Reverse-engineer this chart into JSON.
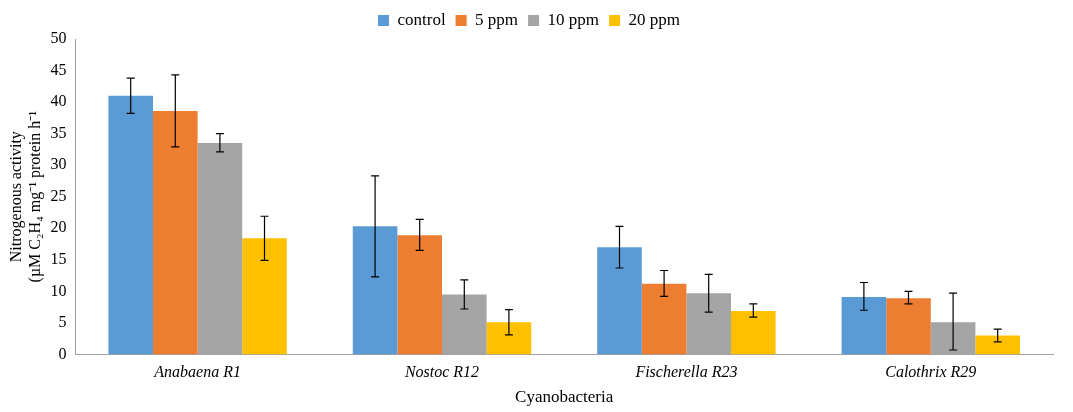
{
  "chart_data": {
    "type": "bar",
    "xlabel": "Cyanobacteria",
    "ylabel": "Nitrogenous activity\n(µM C₂H₄ mg⁻¹ protein h⁻¹",
    "categories": [
      "Anabaena R1",
      "Nostoc R12",
      "Fischerella R23",
      "Calothrix R29"
    ],
    "series": [
      {
        "name": "control",
        "color": "#5b9bd5",
        "values": [
          41.0,
          20.3,
          17.0,
          9.1
        ],
        "errors": [
          [
            38.2,
            43.8
          ],
          [
            12.3,
            28.3
          ],
          [
            13.7,
            20.3
          ],
          [
            7.0,
            11.4
          ]
        ]
      },
      {
        "name": "5 ppm",
        "color": "#ed7d31",
        "values": [
          38.6,
          18.9,
          11.2,
          8.9
        ],
        "errors": [
          [
            32.9,
            44.3
          ],
          [
            16.5,
            21.4
          ],
          [
            9.2,
            13.3
          ],
          [
            8.0,
            10.0
          ]
        ]
      },
      {
        "name": "10 ppm",
        "color": "#a5a5a5",
        "values": [
          33.5,
          9.5,
          9.7,
          5.1
        ],
        "errors": [
          [
            32.1,
            35.0
          ],
          [
            7.2,
            11.8
          ],
          [
            6.7,
            12.7
          ],
          [
            0.7,
            9.7
          ]
        ]
      },
      {
        "name": "20 ppm",
        "color": "#ffc000",
        "values": [
          18.4,
          5.1,
          6.9,
          3.0
        ],
        "errors": [
          [
            14.9,
            21.9
          ],
          [
            3.1,
            7.1
          ],
          [
            5.9,
            8.0
          ],
          [
            2.0,
            4.0
          ]
        ]
      }
    ],
    "ylim": [
      0,
      50
    ],
    "yticks": [
      0,
      5,
      10,
      15,
      20,
      25,
      30,
      35,
      40,
      45,
      50
    ],
    "grid": false,
    "legend": "top"
  }
}
